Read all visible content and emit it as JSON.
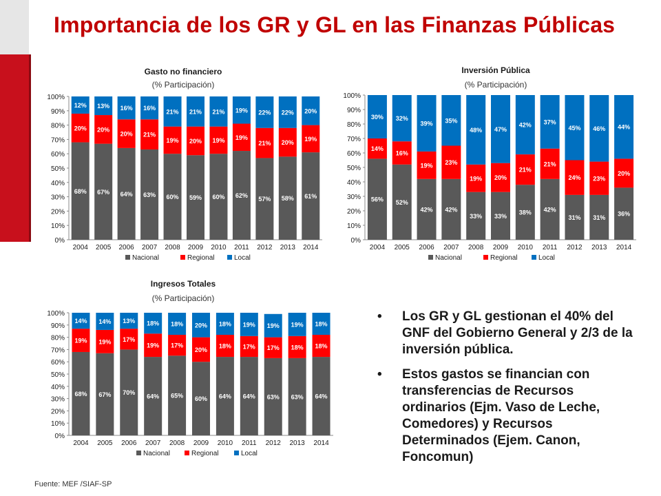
{
  "slide": {
    "title": "Importancia de los GR y GL en las Finanzas Públicas",
    "source": "Fuente: MEF /SIAF-SP",
    "bullets": [
      "Los GR y GL gestionan el 40% del GNF del Gobierno General y 2/3 de la inversión pública.",
      "Estos gastos se financian con transferencias de Recursos ordinarios (Ejm. Vaso de Leche, Comedores) y Recursos Determinados (Ejem. Canon, Foncomun)"
    ],
    "bullet_symbol": "•"
  },
  "colors": {
    "nacional": "#595959",
    "regional": "#ff0000",
    "local": "#0070c0",
    "title": "#c00000"
  },
  "chart_data": [
    {
      "type": "bar",
      "stacked": true,
      "title": "Gasto no financiero",
      "subtitle": "(% Participación)",
      "categories": [
        "2004",
        "2005",
        "2006",
        "2007",
        "2008",
        "2009",
        "2010",
        "2011",
        "2012",
        "2013",
        "2014"
      ],
      "yticks": [
        "0%",
        "10%",
        "20%",
        "30%",
        "40%",
        "50%",
        "60%",
        "70%",
        "80%",
        "90%",
        "100%"
      ],
      "ylim": [
        0,
        100
      ],
      "series": [
        {
          "name": "Nacional",
          "values": [
            68,
            67,
            64,
            63,
            60,
            59,
            60,
            62,
            57,
            58,
            61
          ],
          "labels": [
            "68%",
            "67%",
            "64%",
            "63%",
            "60%",
            "59%",
            "60%",
            "62%",
            "57%",
            "58%",
            "61%"
          ]
        },
        {
          "name": "Regional",
          "values": [
            20,
            20,
            20,
            21,
            19,
            20,
            19,
            19,
            21,
            20,
            19
          ],
          "labels": [
            "20%",
            "20%",
            "20%",
            "21%",
            "19%",
            "20%",
            "19%",
            "19%",
            "21%",
            "20%",
            "19%"
          ]
        },
        {
          "name": "Local",
          "values": [
            12,
            13,
            16,
            16,
            21,
            21,
            21,
            19,
            22,
            22,
            20
          ],
          "labels": [
            "12%",
            "13%",
            "16%",
            "16%",
            "21%",
            "21%",
            "21%",
            "19%",
            "22%",
            "22%",
            "20%"
          ]
        }
      ],
      "legend": "bottom"
    },
    {
      "type": "bar",
      "stacked": true,
      "title": "Inversión Pública",
      "subtitle": "(% Participación)",
      "categories": [
        "2004",
        "2005",
        "2006",
        "2007",
        "2008",
        "2009",
        "2010",
        "2011",
        "2012",
        "2013",
        "2014"
      ],
      "yticks": [
        "0%",
        "10%",
        "20%",
        "30%",
        "40%",
        "50%",
        "60%",
        "70%",
        "80%",
        "90%",
        "100%"
      ],
      "ylim": [
        0,
        100
      ],
      "series": [
        {
          "name": "Nacional",
          "values": [
            56,
            52,
            42,
            42,
            33,
            33,
            38,
            42,
            31,
            31,
            36
          ],
          "labels": [
            "56%",
            "52%",
            "42%",
            "42%",
            "33%",
            "33%",
            "38%",
            "42%",
            "31%",
            "31%",
            "36%"
          ]
        },
        {
          "name": "Regional",
          "values": [
            14,
            16,
            19,
            23,
            19,
            20,
            21,
            21,
            24,
            23,
            20
          ],
          "labels": [
            "14%",
            "16%",
            "19%",
            "23%",
            "19%",
            "20%",
            "21%",
            "21%",
            "24%",
            "23%",
            "20%"
          ]
        },
        {
          "name": "Local",
          "values": [
            30,
            32,
            39,
            35,
            48,
            47,
            42,
            37,
            45,
            46,
            44
          ],
          "labels": [
            "30%",
            "32%",
            "39%",
            "35%",
            "48%",
            "47%",
            "42%",
            "37%",
            "45%",
            "46%",
            "44%"
          ]
        }
      ],
      "legend": "bottom"
    },
    {
      "type": "bar",
      "stacked": true,
      "title": "Ingresos Totales",
      "subtitle": "(% Participación)",
      "categories": [
        "2004",
        "2005",
        "2006",
        "2007",
        "2008",
        "2009",
        "2010",
        "2011",
        "2012",
        "2013",
        "2014"
      ],
      "yticks": [
        "0%",
        "10%",
        "20%",
        "30%",
        "40%",
        "50%",
        "60%",
        "70%",
        "80%",
        "90%",
        "100%"
      ],
      "ylim": [
        0,
        100
      ],
      "series": [
        {
          "name": "Nacional",
          "values": [
            68,
            67,
            70,
            64,
            65,
            60,
            64,
            64,
            63,
            63,
            64
          ],
          "labels": [
            "68%",
            "67%",
            "70%",
            "64%",
            "65%",
            "60%",
            "64%",
            "64%",
            "63%",
            "63%",
            "64%"
          ]
        },
        {
          "name": "Regional",
          "values": [
            19,
            19,
            17,
            19,
            17,
            20,
            18,
            17,
            17,
            18,
            18
          ],
          "labels": [
            "19%",
            "19%",
            "17%",
            "19%",
            "17%",
            "20%",
            "18%",
            "17%",
            "17%",
            "18%",
            "18%"
          ]
        },
        {
          "name": "Local",
          "values": [
            14,
            14,
            13,
            18,
            18,
            20,
            18,
            19,
            19,
            19,
            18
          ],
          "labels": [
            "14%",
            "14%",
            "13%",
            "18%",
            "18%",
            "20%",
            "18%",
            "19%",
            "19%",
            "19%",
            "18%"
          ]
        }
      ],
      "legend": "bottom"
    }
  ]
}
